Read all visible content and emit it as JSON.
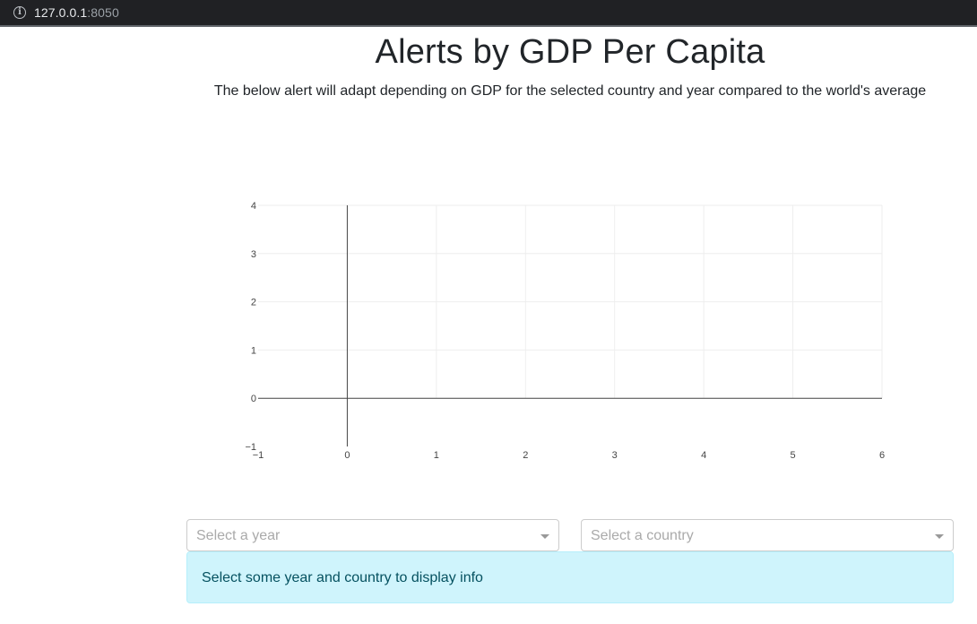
{
  "browser": {
    "url_host": "127.0.0.1",
    "url_port": ":8050"
  },
  "header": {
    "title": "Alerts by GDP Per Capita",
    "subtitle": "The below alert will adapt depending on GDP for the selected country and year compared to the world's average"
  },
  "chart_data": {
    "type": "line",
    "title": "",
    "xlabel": "",
    "ylabel": "",
    "xlim": [
      -1,
      6
    ],
    "ylim": [
      -1,
      4
    ],
    "x_ticks": [
      "−1",
      "0",
      "1",
      "2",
      "3",
      "4",
      "5",
      "6"
    ],
    "y_ticks": [
      "−1",
      "0",
      "1",
      "2",
      "3",
      "4"
    ],
    "series": [],
    "grid": true,
    "zero_lines": true
  },
  "controls": {
    "year_placeholder": "Select a year",
    "country_placeholder": "Select a country"
  },
  "alert": {
    "message": "Select some year and country to display info",
    "background": "#cff4fc",
    "text_color": "#055160"
  }
}
